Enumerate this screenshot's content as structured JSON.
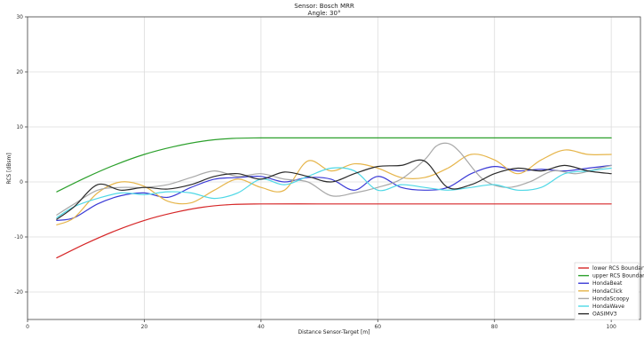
{
  "chart_data": {
    "type": "line",
    "title": "Sensor: Bosch MRR",
    "subtitle": "Angle: 30°",
    "xlabel": "Distance Sensor-Target [m]",
    "ylabel": "RCS [dBsm]",
    "xlim": [
      0,
      105
    ],
    "ylim": [
      -25,
      30
    ],
    "xticks": [
      0,
      20,
      40,
      60,
      80,
      100
    ],
    "yticks": [
      -20,
      -10,
      0,
      10,
      20,
      30
    ],
    "grid": true,
    "legend_position": "lower-right",
    "series": [
      {
        "name": "lower RCS Boundary",
        "color": "#d62728",
        "x": [
          5,
          10,
          15,
          20,
          25,
          30,
          35,
          40,
          50,
          60,
          70,
          80,
          90,
          100
        ],
        "y": [
          -13.8,
          -11.2,
          -8.9,
          -7.0,
          -5.6,
          -4.6,
          -4.1,
          -4.0,
          -4.0,
          -4.0,
          -4.0,
          -4.0,
          -4.0,
          -4.0
        ]
      },
      {
        "name": "upper RCS Boundary",
        "color": "#2ca02c",
        "x": [
          5,
          10,
          15,
          20,
          25,
          30,
          35,
          40,
          50,
          60,
          70,
          80,
          90,
          100
        ],
        "y": [
          -1.8,
          0.8,
          3.1,
          5.0,
          6.4,
          7.4,
          7.9,
          8.0,
          8.0,
          8.0,
          8.0,
          8.0,
          8.0,
          8.0
        ]
      },
      {
        "name": "HondaBeat",
        "color": "#3a3ad6",
        "x": [
          5,
          8,
          12,
          16,
          20,
          24,
          28,
          32,
          36,
          40,
          44,
          48,
          52,
          56,
          60,
          64,
          68,
          72,
          76,
          80,
          84,
          88,
          92,
          96,
          100
        ],
        "y": [
          -7.0,
          -6.5,
          -4.0,
          -2.5,
          -2.0,
          -2.8,
          -1.0,
          0.5,
          0.8,
          1.0,
          0.0,
          0.8,
          0.5,
          -1.5,
          1.0,
          -1.0,
          -1.5,
          -1.0,
          1.5,
          2.8,
          2.0,
          2.3,
          2.0,
          2.5,
          3.0
        ]
      },
      {
        "name": "HondaClick",
        "color": "#e6b54a",
        "x": [
          5,
          8,
          12,
          16,
          20,
          24,
          28,
          32,
          36,
          40,
          44,
          48,
          52,
          56,
          60,
          64,
          68,
          72,
          76,
          80,
          84,
          88,
          92,
          96,
          100
        ],
        "y": [
          -7.8,
          -6.5,
          -2.0,
          0.0,
          -0.8,
          -3.5,
          -3.8,
          -1.5,
          0.5,
          -1.0,
          -1.5,
          3.8,
          2.0,
          3.3,
          2.5,
          0.8,
          0.8,
          2.5,
          5.0,
          4.0,
          1.5,
          4.0,
          5.8,
          5.0,
          5.0
        ]
      },
      {
        "name": "HondaScoopy",
        "color": "#a8a8a8",
        "x": [
          5,
          8,
          12,
          16,
          20,
          24,
          28,
          32,
          36,
          40,
          44,
          48,
          52,
          56,
          60,
          64,
          68,
          70,
          72,
          74,
          78,
          82,
          86,
          90,
          94,
          98,
          100
        ],
        "y": [
          -6.0,
          -4.0,
          -1.5,
          -1.0,
          -1.0,
          -0.5,
          0.8,
          2.0,
          1.0,
          1.5,
          0.5,
          0.0,
          -2.5,
          -2.0,
          -1.0,
          0.5,
          4.0,
          6.5,
          7.0,
          5.5,
          0.5,
          -1.0,
          0.0,
          2.0,
          1.5,
          2.5,
          3.0
        ]
      },
      {
        "name": "HondaWave",
        "color": "#4fd8e6",
        "x": [
          5,
          8,
          12,
          16,
          20,
          24,
          28,
          32,
          36,
          40,
          44,
          48,
          52,
          56,
          60,
          64,
          68,
          72,
          76,
          80,
          84,
          88,
          92,
          96,
          100
        ],
        "y": [
          -6.5,
          -4.5,
          -3.0,
          -2.0,
          -2.3,
          -1.8,
          -2.0,
          -3.0,
          -2.0,
          0.5,
          -0.5,
          1.0,
          2.5,
          2.0,
          -1.5,
          -0.5,
          -1.0,
          -1.5,
          -1.0,
          -0.5,
          -1.5,
          -1.0,
          1.5,
          2.0,
          2.5
        ]
      },
      {
        "name": "OASIMV3",
        "color": "#2a2a2a",
        "x": [
          5,
          8,
          12,
          16,
          20,
          24,
          28,
          32,
          36,
          40,
          44,
          48,
          52,
          56,
          60,
          64,
          68,
          72,
          76,
          80,
          84,
          88,
          92,
          96,
          100
        ],
        "y": [
          -6.8,
          -4.5,
          -0.5,
          -1.5,
          -1.0,
          -1.3,
          -0.5,
          1.0,
          1.5,
          0.5,
          1.8,
          1.0,
          0.0,
          1.5,
          2.8,
          3.0,
          3.8,
          -1.0,
          -0.5,
          1.5,
          2.5,
          2.0,
          3.0,
          2.0,
          1.5
        ]
      }
    ]
  }
}
